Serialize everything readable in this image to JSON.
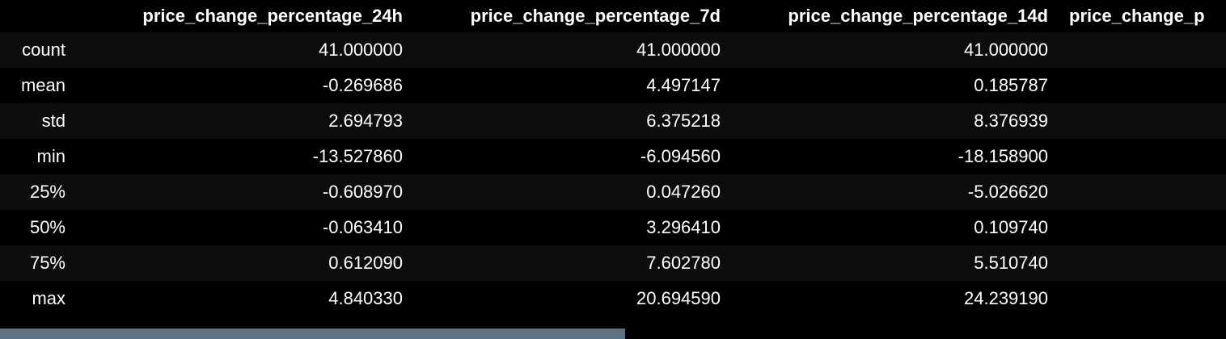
{
  "table": {
    "index_header": "",
    "columns": [
      "price_change_percentage_24h",
      "price_change_percentage_7d",
      "price_change_percentage_14d",
      "price_change_p"
    ],
    "rows": [
      {
        "label": "count",
        "values": [
          "41.000000",
          "41.000000",
          "41.000000",
          ""
        ]
      },
      {
        "label": "mean",
        "values": [
          "-0.269686",
          "4.497147",
          "0.185787",
          ""
        ]
      },
      {
        "label": "std",
        "values": [
          "2.694793",
          "6.375218",
          "8.376939",
          ""
        ]
      },
      {
        "label": "min",
        "values": [
          "-13.527860",
          "-6.094560",
          "-18.158900",
          ""
        ]
      },
      {
        "label": "25%",
        "values": [
          "-0.608970",
          "0.047260",
          "-5.026620",
          ""
        ]
      },
      {
        "label": "50%",
        "values": [
          "-0.063410",
          "3.296410",
          "0.109740",
          ""
        ]
      },
      {
        "label": "75%",
        "values": [
          "0.612090",
          "7.602780",
          "5.510740",
          ""
        ]
      },
      {
        "label": "max",
        "values": [
          "4.840330",
          "20.694590",
          "24.239190",
          ""
        ]
      }
    ]
  },
  "scrollbar": {
    "horizontal_position_fraction": 0.0,
    "visible_fraction": 0.51
  },
  "colors": {
    "background": "#000000",
    "row_stripe": "#0d0d0d",
    "text": "#ffffff",
    "scrollbar_thumb": "#5d7486"
  }
}
